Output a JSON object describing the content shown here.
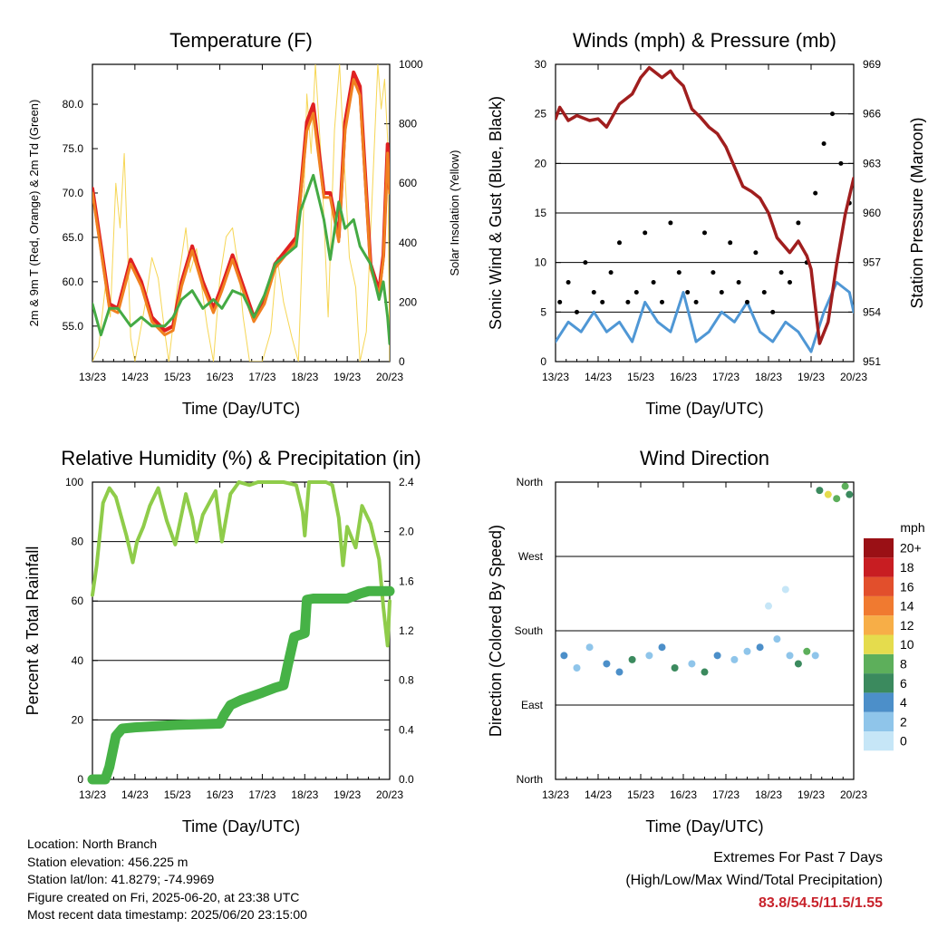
{
  "colors": {
    "temp2m": "#e02121",
    "temp9m": "#f08020",
    "dewpoint": "#44aa44",
    "insolation": "#f5d142",
    "gust": "#000000",
    "wind": "#4f97d5",
    "pressure": "#a01e1e",
    "rh": "#8fcc4a",
    "precip": "#46b246",
    "extremes": "#c8232c"
  },
  "charts": {
    "temperature": {
      "title": "Temperature (F)",
      "xlabel": "Time (Day/UTC)",
      "ylabel": "2m & 9m T (Red, Orange) & 2m Td (Green)",
      "ylabel_right": "Solar Insolation (Yellow)"
    },
    "winds": {
      "title": "Winds (mph) & Pressure (mb)",
      "xlabel": "Time (Day/UTC)",
      "ylabel": "Sonic Wind & Gust (Blue, Black)",
      "ylabel_right": "Station Pressure (Maroon)"
    },
    "humidity": {
      "title": "Relative Humidity (%) & Precipitation (in)",
      "xlabel": "Time (Day/UTC)",
      "ylabel": "Percent & Total Rainfall"
    },
    "direction": {
      "title": "Wind Direction",
      "xlabel": "Time (Day/UTC)",
      "ylabel": "Direction (Colored By Speed)",
      "legend_title": "mph"
    }
  },
  "info": {
    "location": "Location: North Branch",
    "elevation": "Station elevation: 456.225 m",
    "latlon": "Station lat/lon: 41.8279; -74.9969",
    "created": "Figure created on Fri, 2025-06-20, at 23:38 UTC",
    "recent": "Most recent data timestamp: 2025/06/20 23:15:00"
  },
  "extremes": {
    "title": "Extremes For Past 7 Days",
    "subtitle": "(High/Low/Max Wind/Total Precipitation)",
    "values": "83.8/54.5/11.5/1.55"
  },
  "chart_data": [
    {
      "type": "line",
      "name": "temperature",
      "x_ticks": [
        "13/23",
        "14/23",
        "15/23",
        "16/23",
        "17/23",
        "18/23",
        "19/23",
        "20/23"
      ],
      "x_range_days": [
        0,
        7
      ],
      "y_ticks": [
        "55.0",
        "60.0",
        "65.0",
        "70.0",
        "75.0",
        "80.0"
      ],
      "ylim": [
        51.0,
        84.5
      ],
      "y2_ticks": [
        "0",
        "200",
        "400",
        "600",
        "800",
        "1000"
      ],
      "y2lim": [
        0,
        1000
      ],
      "series": [
        {
          "key": "t2m",
          "color_key": "temp2m",
          "x": [
            0,
            0.2,
            0.4,
            0.6,
            0.9,
            1.15,
            1.4,
            1.7,
            1.9,
            2.1,
            2.35,
            2.6,
            2.85,
            3.05,
            3.3,
            3.55,
            3.8,
            4.05,
            4.3,
            4.55,
            4.8,
            4.9,
            5.05,
            5.2,
            5.45,
            5.6,
            5.8,
            5.95,
            6.15,
            6.3,
            6.55,
            6.75,
            6.85,
            6.95,
            7.0
          ],
          "y": [
            70.5,
            64,
            57.5,
            57,
            62.5,
            60,
            56,
            54.5,
            55,
            60,
            64,
            60,
            57,
            59.5,
            63,
            59.5,
            56,
            58,
            62,
            63.5,
            65,
            70,
            78,
            80,
            70,
            70,
            65,
            78,
            83.6,
            82,
            62,
            59,
            63,
            75.5,
            70.5
          ]
        },
        {
          "key": "t9m",
          "color_key": "temp9m",
          "x": [
            0,
            0.2,
            0.4,
            0.6,
            0.9,
            1.15,
            1.4,
            1.7,
            1.9,
            2.1,
            2.35,
            2.6,
            2.85,
            3.05,
            3.3,
            3.55,
            3.8,
            4.05,
            4.3,
            4.55,
            4.8,
            4.9,
            5.05,
            5.2,
            5.45,
            5.6,
            5.8,
            5.95,
            6.15,
            6.3,
            6.55,
            6.75,
            6.85,
            6.95,
            7.0
          ],
          "y": [
            70,
            63.5,
            57,
            56.5,
            62,
            59.5,
            55.5,
            54,
            54.5,
            59.5,
            63.5,
            59.5,
            56.5,
            59,
            62.5,
            59,
            55.5,
            57.5,
            61.5,
            63,
            64.5,
            69.5,
            77,
            79,
            69.5,
            69.5,
            64.5,
            77,
            82.8,
            81,
            61.5,
            58.5,
            62.5,
            74.5,
            70
          ]
        },
        {
          "key": "td2m",
          "color_key": "dewpoint",
          "x": [
            0,
            0.2,
            0.4,
            0.6,
            0.9,
            1.15,
            1.4,
            1.7,
            1.9,
            2.1,
            2.35,
            2.6,
            2.85,
            3.05,
            3.3,
            3.55,
            3.8,
            4.05,
            4.3,
            4.55,
            4.8,
            4.9,
            5.05,
            5.2,
            5.45,
            5.6,
            5.8,
            5.95,
            6.15,
            6.3,
            6.55,
            6.75,
            6.85,
            6.95,
            7.0
          ],
          "y": [
            57.5,
            54,
            57,
            57,
            55,
            56,
            55,
            55,
            56,
            58,
            59,
            57,
            58,
            57,
            59,
            58.5,
            56,
            58.5,
            62,
            63,
            64,
            68,
            70,
            72,
            67,
            62.5,
            69,
            66,
            67,
            64,
            62,
            58,
            60,
            56,
            53
          ]
        },
        {
          "key": "insolation",
          "color_key": "insolation",
          "axis": "right",
          "x": [
            0,
            0.15,
            0.3,
            0.42,
            0.55,
            0.65,
            0.75,
            0.9,
            1.0,
            1.25,
            1.4,
            1.55,
            1.7,
            1.8,
            2.0,
            2.2,
            2.3,
            2.45,
            2.7,
            2.85,
            3.0,
            3.15,
            3.3,
            3.45,
            3.55,
            3.7,
            4.0,
            4.2,
            4.35,
            4.5,
            4.7,
            4.85,
            4.95,
            5.05,
            5.15,
            5.25,
            5.4,
            5.55,
            5.7,
            5.82,
            5.95,
            6.05,
            6.2,
            6.3,
            6.45,
            6.6,
            6.72,
            6.8,
            6.88,
            6.95,
            7.0
          ],
          "y": [
            0,
            50,
            250,
            150,
            600,
            450,
            700,
            80,
            0,
            200,
            350,
            280,
            100,
            0,
            250,
            450,
            300,
            380,
            120,
            0,
            280,
            420,
            450,
            300,
            150,
            0,
            0,
            100,
            350,
            200,
            80,
            0,
            400,
            900,
            700,
            1000,
            650,
            150,
            780,
            1000,
            620,
            350,
            250,
            0,
            100,
            600,
            1000,
            850,
            950,
            750,
            0
          ]
        }
      ]
    },
    {
      "type": "line",
      "name": "winds",
      "x_ticks": [
        "13/23",
        "14/23",
        "15/23",
        "16/23",
        "17/23",
        "18/23",
        "19/23",
        "20/23"
      ],
      "x_range_days": [
        0,
        7
      ],
      "y_ticks": [
        "0",
        "5",
        "10",
        "15",
        "20",
        "25",
        "30"
      ],
      "ylim": [
        0,
        30
      ],
      "y2_ticks": [
        "951",
        "954",
        "957",
        "960",
        "963",
        "966",
        "969"
      ],
      "y2lim": [
        951,
        969
      ],
      "series": [
        {
          "key": "pressure",
          "color_key": "pressure",
          "axis": "right",
          "x": [
            0,
            0.1,
            0.3,
            0.5,
            0.8,
            1.0,
            1.2,
            1.5,
            1.8,
            2.0,
            2.2,
            2.5,
            2.7,
            2.8,
            3.0,
            3.2,
            3.4,
            3.6,
            3.8,
            4.0,
            4.2,
            4.4,
            4.6,
            4.8,
            5.0,
            5.2,
            5.5,
            5.7,
            5.9,
            6.0,
            6.2,
            6.4,
            6.6,
            6.8,
            7.0
          ],
          "y": [
            965.7,
            966.4,
            965.6,
            965.9,
            965.6,
            965.7,
            965.2,
            966.6,
            967.2,
            968.2,
            968.8,
            968.2,
            968.6,
            968.2,
            967.7,
            966.3,
            965.8,
            965.2,
            964.8,
            964,
            962.8,
            961.6,
            961.3,
            960.9,
            960,
            958.5,
            957.6,
            958.3,
            957.4,
            956.6,
            952.1,
            953.4,
            956.9,
            959.9,
            962.1
          ]
        },
        {
          "key": "wind",
          "color_key": "wind",
          "x": [
            0,
            0.3,
            0.6,
            0.9,
            1.2,
            1.5,
            1.8,
            2.1,
            2.4,
            2.7,
            3.0,
            3.3,
            3.6,
            3.9,
            4.2,
            4.5,
            4.8,
            5.1,
            5.4,
            5.7,
            6.0,
            6.3,
            6.6,
            6.9,
            7.0
          ],
          "y": [
            2,
            4,
            3,
            5,
            3,
            4,
            2,
            6,
            4,
            3,
            7,
            2,
            3,
            5,
            4,
            6,
            3,
            2,
            4,
            3,
            1,
            5,
            8,
            7,
            5
          ]
        },
        {
          "key": "gust",
          "color_key": "gust",
          "type": "scatter",
          "x": [
            0.1,
            0.3,
            0.5,
            0.7,
            0.9,
            1.1,
            1.3,
            1.5,
            1.7,
            1.9,
            2.1,
            2.3,
            2.5,
            2.7,
            2.9,
            3.1,
            3.3,
            3.5,
            3.7,
            3.9,
            4.1,
            4.3,
            4.5,
            4.7,
            4.9,
            5.1,
            5.3,
            5.5,
            5.7,
            5.9,
            6.1,
            6.3,
            6.5,
            6.7,
            6.9
          ],
          "y": [
            6,
            8,
            5,
            10,
            7,
            6,
            9,
            12,
            6,
            7,
            13,
            8,
            6,
            14,
            9,
            7,
            6,
            13,
            9,
            7,
            12,
            8,
            6,
            11,
            7,
            5,
            9,
            8,
            14,
            10,
            17,
            22,
            25,
            20,
            16
          ]
        }
      ]
    },
    {
      "type": "line",
      "name": "humidity",
      "x_ticks": [
        "13/23",
        "14/23",
        "15/23",
        "16/23",
        "17/23",
        "18/23",
        "19/23",
        "20/23"
      ],
      "x_range_days": [
        0,
        7
      ],
      "y_ticks": [
        "0",
        "20",
        "40",
        "60",
        "80",
        "100"
      ],
      "ylim": [
        0,
        100
      ],
      "y2_ticks": [
        "0.0",
        "0.4",
        "0.8",
        "1.2",
        "1.6",
        "2.0",
        "2.4"
      ],
      "y2lim": [
        0,
        2.4
      ],
      "series": [
        {
          "key": "rh",
          "color_key": "rh",
          "x": [
            0,
            0.1,
            0.25,
            0.4,
            0.55,
            0.8,
            0.95,
            1.05,
            1.2,
            1.35,
            1.55,
            1.75,
            1.95,
            2.2,
            2.35,
            2.45,
            2.6,
            2.9,
            3.05,
            3.25,
            3.45,
            3.7,
            3.9,
            4.2,
            4.5,
            4.8,
            4.95,
            5.0,
            5.1,
            5.25,
            5.5,
            5.65,
            5.8,
            5.9,
            6.0,
            6.2,
            6.35,
            6.55,
            6.75,
            6.85,
            6.95,
            7.0
          ],
          "y": [
            62,
            72,
            93,
            98,
            95,
            82,
            73,
            80,
            85,
            92,
            98,
            87,
            79,
            96,
            88,
            80,
            89,
            97,
            80,
            96,
            100,
            99,
            100,
            100,
            100,
            99,
            90,
            82,
            100,
            100,
            100,
            99,
            88,
            72,
            85,
            78,
            92,
            86,
            74,
            58,
            45,
            60
          ]
        },
        {
          "key": "precip",
          "color_key": "precip",
          "axis": "right",
          "x": [
            0,
            0.3,
            0.4,
            0.55,
            0.7,
            1.0,
            2.0,
            3.0,
            3.1,
            3.25,
            3.5,
            4.0,
            4.3,
            4.5,
            4.6,
            4.75,
            5.0,
            5.05,
            5.2,
            5.5,
            6.0,
            6.3,
            6.5,
            7.0
          ],
          "y": [
            0,
            0,
            0.1,
            0.35,
            0.41,
            0.42,
            0.44,
            0.45,
            0.52,
            0.6,
            0.64,
            0.7,
            0.74,
            0.76,
            0.92,
            1.15,
            1.18,
            1.45,
            1.46,
            1.46,
            1.46,
            1.5,
            1.52,
            1.52
          ]
        }
      ]
    },
    {
      "type": "scatter",
      "name": "wind_direction",
      "x_ticks": [
        "13/23",
        "14/23",
        "15/23",
        "16/23",
        "17/23",
        "18/23",
        "19/23",
        "20/23"
      ],
      "x_range_days": [
        0,
        7
      ],
      "y_ticks": [
        "North",
        "East",
        "South",
        "West",
        "North"
      ],
      "ylim_deg": [
        0,
        360
      ],
      "legend_ticks": [
        "0",
        "2",
        "4",
        "6",
        "8",
        "10",
        "12",
        "14",
        "16",
        "18",
        "20+"
      ],
      "legend_colors": [
        "#c6e6f7",
        "#8fc5ea",
        "#4c8fc9",
        "#3b8a5e",
        "#5daf5b",
        "#e5dc4d",
        "#f7ae47",
        "#f07a30",
        "#e24f2c",
        "#c81d22",
        "#9a1015"
      ],
      "series": [
        {
          "key": "direction",
          "x": [
            0.2,
            0.5,
            0.8,
            1.2,
            1.5,
            1.8,
            2.2,
            2.5,
            2.8,
            3.2,
            3.5,
            3.8,
            4.2,
            4.5,
            4.8,
            5.0,
            5.2,
            5.4,
            5.5,
            5.7,
            5.9,
            6.1,
            6.2,
            6.4,
            6.6,
            6.8,
            6.9
          ],
          "y": [
            150,
            135,
            160,
            140,
            130,
            145,
            150,
            160,
            135,
            140,
            130,
            150,
            145,
            155,
            160,
            210,
            170,
            230,
            150,
            140,
            155,
            150,
            350,
            345,
            340,
            355,
            345
          ],
          "speed": [
            4,
            3,
            2,
            5,
            4,
            6,
            3,
            4,
            6,
            3,
            7,
            4,
            2,
            3,
            5,
            1,
            2,
            1,
            3,
            6,
            8,
            2,
            7,
            10,
            9,
            8,
            7
          ]
        }
      ]
    }
  ]
}
